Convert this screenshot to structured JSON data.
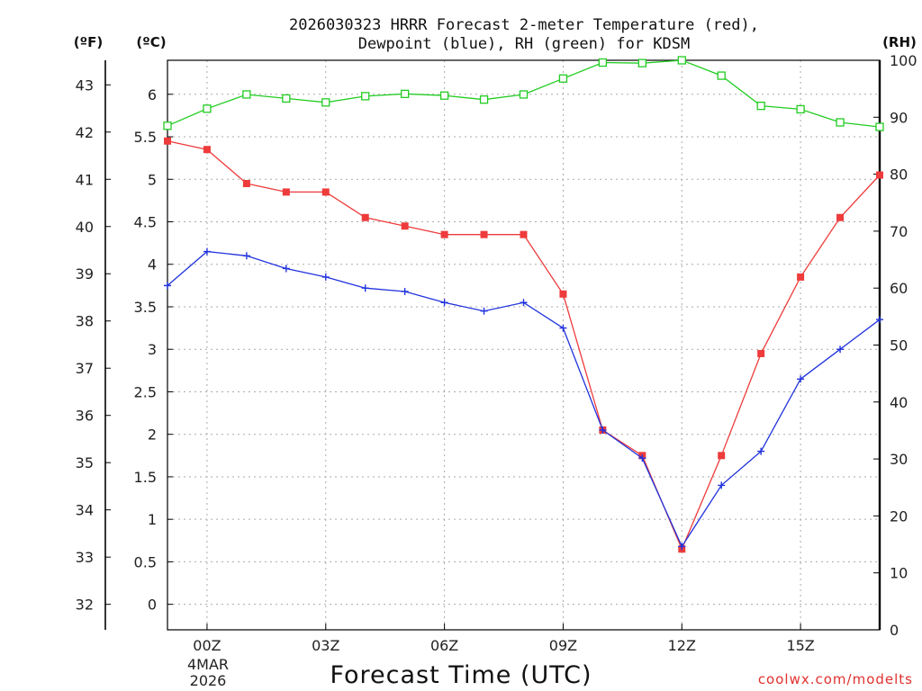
{
  "chart_data": {
    "type": "line",
    "title_line1": "2026030323 HRRR Forecast 2-meter Temperature (red),",
    "title_line2": "Dewpoint (blue), RH (green) for KDSM",
    "xlabel": "Forecast Time (UTC)",
    "credit": "coolwx.com/modelts",
    "units": {
      "f": "(ºF)",
      "c": "(ºC)",
      "rh": "(RH)"
    },
    "date_labels": [
      "4MAR",
      "2026"
    ],
    "x": [
      -1,
      0,
      1,
      2,
      3,
      4,
      5,
      6,
      7,
      8,
      9,
      10,
      11,
      12,
      13,
      14,
      15,
      16,
      17
    ],
    "xlim": [
      -1,
      17
    ],
    "x_ticks": [
      {
        "x": 0,
        "label": "00Z"
      },
      {
        "x": 3,
        "label": "03Z"
      },
      {
        "x": 6,
        "label": "06Z"
      },
      {
        "x": 9,
        "label": "09Z"
      },
      {
        "x": 12,
        "label": "12Z"
      },
      {
        "x": 15,
        "label": "15Z"
      }
    ],
    "c_axis": {
      "ylim": [
        -0.3,
        6.4
      ],
      "ticks": [
        "0",
        "0.5",
        "1",
        "1.5",
        "2",
        "2.5",
        "3",
        "3.5",
        "4",
        "4.5",
        "5",
        "5.5",
        "6"
      ]
    },
    "f_axis": {
      "ticks": [
        "32",
        "33",
        "34",
        "35",
        "36",
        "37",
        "38",
        "39",
        "40",
        "41",
        "42",
        "43"
      ]
    },
    "rh_axis": {
      "ylim": [
        0,
        100
      ],
      "ticks": [
        "0",
        "10",
        "20",
        "30",
        "40",
        "50",
        "60",
        "70",
        "80",
        "90",
        "100"
      ]
    },
    "series": [
      {
        "name": "Temperature",
        "axis": "c",
        "color": "#ee3b3b",
        "marker": "filled-square",
        "values": [
          5.45,
          5.35,
          4.95,
          4.85,
          4.85,
          4.55,
          4.45,
          4.35,
          4.35,
          4.35,
          3.65,
          2.05,
          1.75,
          0.65,
          1.75,
          2.95,
          3.85,
          4.55,
          5.05
        ]
      },
      {
        "name": "Dewpoint",
        "axis": "c",
        "color": "#2233dd",
        "marker": "plus",
        "values": [
          3.75,
          4.15,
          4.1,
          3.95,
          3.85,
          3.72,
          3.68,
          3.55,
          3.45,
          3.55,
          3.25,
          2.05,
          1.72,
          0.68,
          1.4,
          1.8,
          2.65,
          3.0,
          3.35
        ]
      },
      {
        "name": "RH",
        "axis": "rh",
        "color": "#22cc22",
        "marker": "open-square",
        "values": [
          88.5,
          91.5,
          94,
          93.3,
          92.6,
          93.7,
          94.1,
          93.8,
          93.1,
          94,
          96.8,
          99.6,
          99.5,
          100,
          97.3,
          92,
          91.4,
          89.1,
          88.3
        ]
      }
    ]
  }
}
